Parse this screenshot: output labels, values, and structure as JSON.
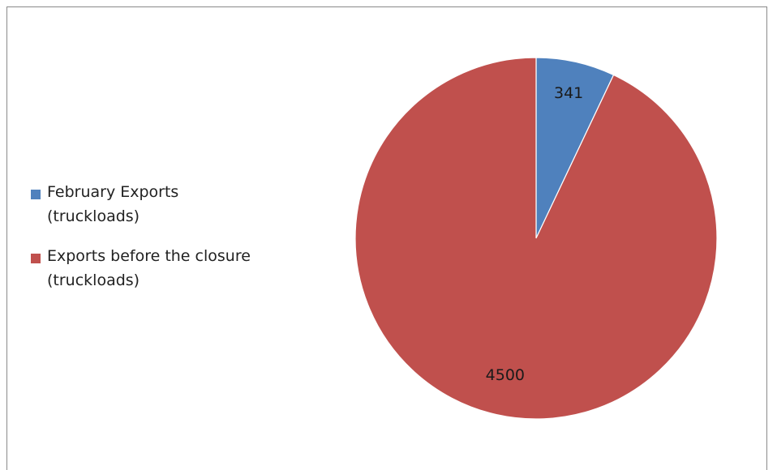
{
  "chart_data": {
    "type": "pie",
    "title": "",
    "categories": [
      "February Exports (truckloads)",
      "Exports before the closure (truckloads)"
    ],
    "values": [
      341,
      4500
    ],
    "data_labels": [
      "341",
      "4500"
    ],
    "colors": [
      "#4f81bd",
      "#c0504d"
    ],
    "legend_position": "left",
    "legend": [
      {
        "lines": [
          "February Exports",
          "(truckloads)"
        ]
      },
      {
        "lines": [
          "Exports before the closure",
          "(truckloads)"
        ]
      }
    ]
  }
}
